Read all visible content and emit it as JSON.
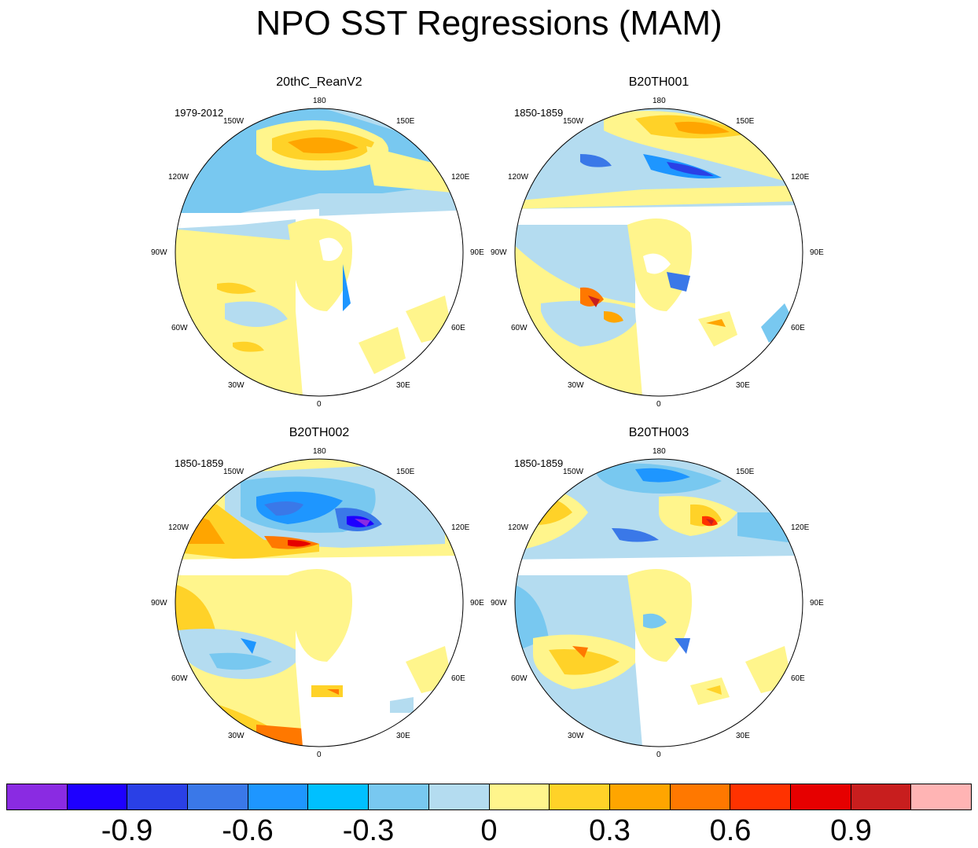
{
  "title": "NPO SST Regressions (MAM)",
  "panels": [
    {
      "title": "20thC_ReanV2",
      "period": "1979-2012"
    },
    {
      "title": "B20TH001",
      "period": "1850-1859"
    },
    {
      "title": "B20TH002",
      "period": "1850-1859"
    },
    {
      "title": "B20TH003",
      "period": "1850-1859"
    }
  ],
  "longitude_labels": {
    "top": "180",
    "top_left": "150W",
    "top_right": "150E",
    "upper_left": "120W",
    "upper_right": "120E",
    "left": "90W",
    "right": "90E",
    "lower_left": "60W",
    "lower_right": "60E",
    "bottom_left": "30W",
    "bottom_right": "30E",
    "bottom": "0"
  },
  "colorbar": {
    "colors": [
      "#8a2be2",
      "#1e00ff",
      "#2a40e6",
      "#3a78e8",
      "#1e96ff",
      "#00c0ff",
      "#78c8f0",
      "#b4dcf0",
      "#fff58c",
      "#ffd228",
      "#ffa500",
      "#ff7800",
      "#ff3200",
      "#e60000",
      "#c81e1e",
      "#ffb4b4"
    ],
    "labels": [
      "-0.9",
      "-0.6",
      "-0.3",
      "0",
      "0.3",
      "0.6",
      "0.9"
    ]
  }
}
